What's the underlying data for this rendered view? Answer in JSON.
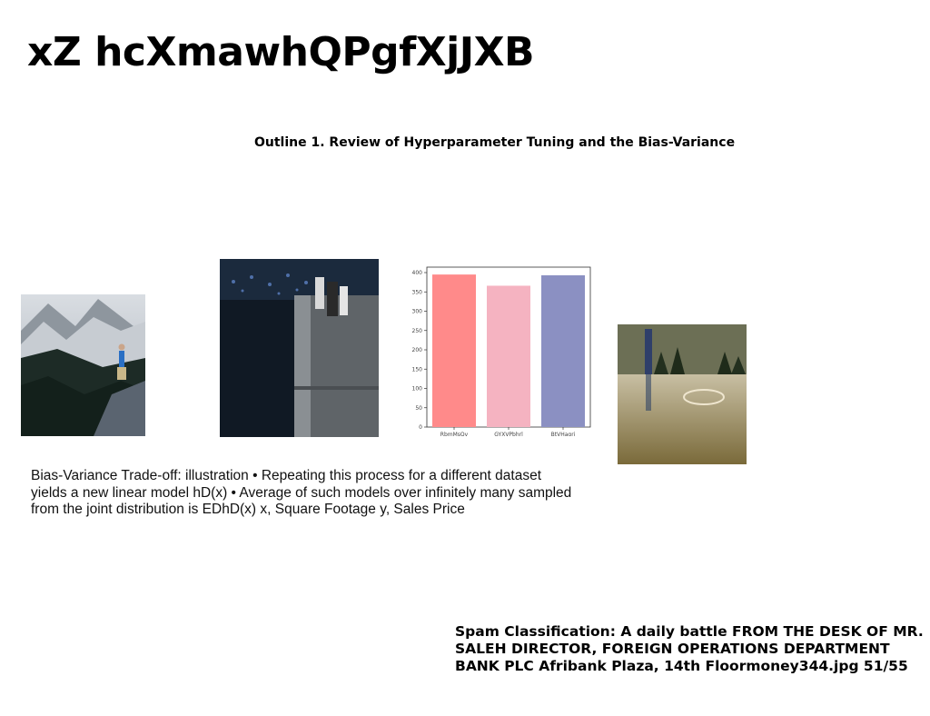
{
  "slide": {
    "title": "xZ hcXmawhQPgfXjJXB",
    "subtitle": "Outline 1. Review of Hyperparameter Tuning and the Bias-Variance",
    "body": "Bias-Variance Trade-off: illustration • Repeating this process for a different dataset yields a new linear model hD(x) • Average of such models over infinitely many sampled from the joint distribution is EDhD(x) x, Square Footage y, Sales Price",
    "footer": "Spam Classification: A daily battle FROM THE DESK OF MR. SALEH DIRECTOR, FOREIGN OPERATIONS DEPARTMENT BANK PLC Afribank Plaza, 14th Floormoney344.jpg 51/55"
  },
  "images": [
    {
      "icon": "mountain-hiker-photo"
    },
    {
      "icon": "night-waterfront-photo"
    },
    {
      "icon": "figure-over-water-photo"
    }
  ],
  "chart_data": {
    "type": "bar",
    "categories": [
      "RbmMsQv",
      "GYXVPbhrl",
      "BtVHaqrj"
    ],
    "values": [
      395,
      366,
      393
    ],
    "colors": [
      "#ff8a8a",
      "#f5b3c1",
      "#8b90c2"
    ],
    "ylim": [
      0,
      400
    ],
    "yticks": [
      0,
      50,
      100,
      150,
      200,
      250,
      300,
      350,
      400
    ],
    "title": "",
    "xlabel": "",
    "ylabel": ""
  }
}
